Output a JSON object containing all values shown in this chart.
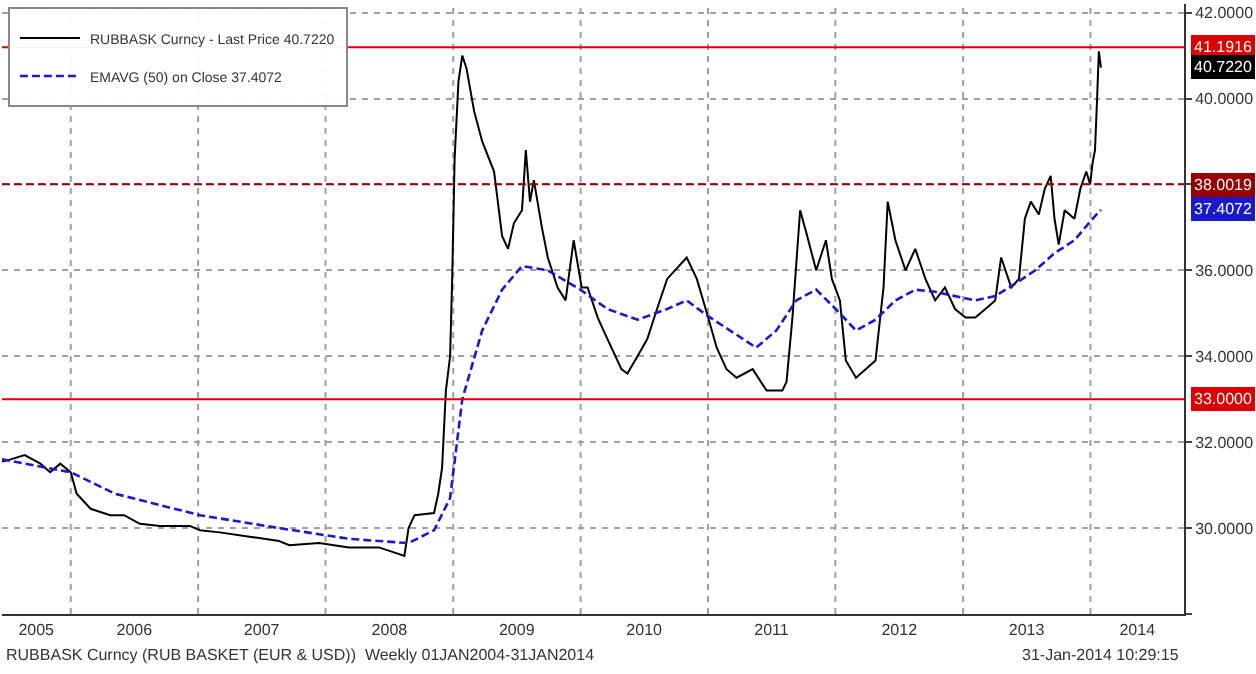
{
  "chart_data": {
    "type": "line",
    "legend": "top left",
    "grid": true,
    "marker": "none",
    "xlim": [
      "2005-06-18",
      "2014-09-26"
    ],
    "xticks": [
      {
        "value": "2005-09-24",
        "label": "2005"
      },
      {
        "value": "2006-01-01",
        "label": null
      },
      {
        "value": "2006-07-02",
        "label": "2006"
      },
      {
        "value": "2007-01-01",
        "label": null
      },
      {
        "value": "2007-07-02",
        "label": "2007"
      },
      {
        "value": "2008-01-01",
        "label": null
      },
      {
        "value": "2008-07-02",
        "label": "2008"
      },
      {
        "value": "2009-01-01",
        "label": null
      },
      {
        "value": "2009-07-02",
        "label": "2009"
      },
      {
        "value": "2010-01-01",
        "label": null
      },
      {
        "value": "2010-07-02",
        "label": "2010"
      },
      {
        "value": "2011-01-01",
        "label": null
      },
      {
        "value": "2011-07-02",
        "label": "2011"
      },
      {
        "value": "2012-01-01",
        "label": null
      },
      {
        "value": "2012-07-02",
        "label": "2012"
      },
      {
        "value": "2013-01-01",
        "label": null
      },
      {
        "value": "2013-07-02",
        "label": "2013"
      },
      {
        "value": "2014-01-01",
        "label": null
      },
      {
        "value": "2014-05-15",
        "label": "2014"
      }
    ],
    "ylim": [
      28,
      42.2
    ],
    "yticks": [
      {
        "value": 28,
        "label": null
      },
      {
        "value": 30,
        "label": "30.0000"
      },
      {
        "value": 32,
        "label": "32.0000"
      },
      {
        "value": 34,
        "label": "34.0000"
      },
      {
        "value": 36,
        "label": "36.0000"
      },
      {
        "value": 38,
        "label": null
      },
      {
        "value": 40,
        "label": "40.0000"
      },
      {
        "value": 42,
        "label": "42.0000"
      }
    ],
    "series": [
      {
        "name": "RUBBASK Curncy - Last Price 40.7220",
        "color": "#000000",
        "line_style": "solid",
        "x": [
          "2005-06-18",
          "2005-07-13",
          "2005-08-22",
          "2005-10-06",
          "2005-11-03",
          "2005-12-02",
          "2006-01-01",
          "2006-01-18",
          "2006-02-27",
          "2006-04-24",
          "2006-06-03",
          "2006-07-18",
          "2006-09-14",
          "2006-12-08",
          "2007-01-06",
          "2007-03-04",
          "2007-05-28",
          "2007-08-21",
          "2007-09-19",
          "2007-12-14",
          "2008-03-08",
          "2008-06-02",
          "2008-07-28",
          "2008-08-14",
          "2008-08-26",
          "2008-09-12",
          "2008-11-07",
          "2008-11-19",
          "2008-11-30",
          "2008-12-11",
          "2008-12-23",
          "2008-12-29",
          "2009-01-05",
          "2009-01-16",
          "2009-01-27",
          "2009-02-08",
          "2009-02-19",
          "2009-03-02",
          "2009-03-25",
          "2009-04-28",
          "2009-05-21",
          "2009-06-07",
          "2009-06-24",
          "2009-07-17",
          "2009-07-28",
          "2009-08-09",
          "2009-08-20",
          "2009-09-12",
          "2009-09-29",
          "2009-10-27",
          "2009-11-19",
          "2009-12-12",
          "2010-01-04",
          "2010-01-21",
          "2010-02-19",
          "2010-03-19",
          "2010-04-28",
          "2010-05-15",
          "2010-06-13",
          "2010-07-11",
          "2010-08-08",
          "2010-09-06",
          "2010-11-01",
          "2010-11-30",
          "2010-12-29",
          "2011-01-26",
          "2011-02-23",
          "2011-03-24",
          "2011-05-09",
          "2011-06-18",
          "2011-08-02",
          "2011-08-14",
          "2011-08-31",
          "2011-09-22",
          "2011-10-09",
          "2011-11-07",
          "2011-12-05",
          "2011-12-22",
          "2012-01-14",
          "2012-01-31",
          "2012-02-29",
          "2012-03-28",
          "2012-04-25",
          "2012-05-18",
          "2012-05-30",
          "2012-06-21",
          "2012-07-20",
          "2012-08-17",
          "2012-09-15",
          "2012-10-13",
          "2012-11-10",
          "2012-12-09",
          "2013-01-08",
          "2013-02-05",
          "2013-03-06",
          "2013-04-03",
          "2013-04-20",
          "2013-05-19",
          "2013-06-10",
          "2013-06-27",
          "2013-07-14",
          "2013-08-06",
          "2013-08-23",
          "2013-09-09",
          "2013-09-20",
          "2013-10-02",
          "2013-10-19",
          "2013-11-16",
          "2013-12-03",
          "2013-12-20",
          "2013-12-31",
          "2014-01-07",
          "2014-01-14",
          "2014-01-20",
          "2014-01-25",
          "2014-01-31"
        ],
        "values": [
          31.55,
          31.6,
          31.7,
          31.5,
          31.3,
          31.5,
          31.3,
          30.8,
          30.45,
          30.3,
          30.3,
          30.1,
          30.05,
          30.05,
          29.95,
          29.9,
          29.8,
          29.7,
          29.6,
          29.65,
          29.55,
          29.55,
          29.4,
          29.35,
          30.0,
          30.3,
          30.35,
          30.8,
          31.4,
          33.2,
          34.0,
          35.8,
          38.6,
          40.4,
          41.0,
          40.7,
          40.2,
          39.7,
          39.0,
          38.3,
          36.8,
          36.5,
          37.1,
          37.4,
          38.8,
          37.6,
          38.1,
          37.0,
          36.3,
          35.6,
          35.3,
          36.7,
          35.6,
          35.6,
          34.9,
          34.4,
          33.7,
          33.6,
          34.0,
          34.4,
          35.1,
          35.8,
          36.3,
          35.8,
          35.0,
          34.2,
          33.7,
          33.5,
          33.7,
          33.2,
          33.2,
          33.4,
          34.9,
          37.4,
          36.9,
          36.0,
          36.7,
          35.8,
          35.3,
          33.9,
          33.5,
          33.7,
          33.9,
          35.6,
          37.6,
          36.7,
          36.0,
          36.5,
          35.8,
          35.3,
          35.6,
          35.1,
          34.9,
          34.9,
          35.1,
          35.3,
          36.3,
          35.6,
          35.8,
          37.2,
          37.6,
          37.3,
          37.9,
          38.2,
          37.2,
          36.6,
          37.4,
          37.2,
          37.9,
          38.3,
          38.0,
          38.5,
          38.8,
          40.0,
          41.1,
          40.72
        ]
      },
      {
        "name": "EMAVG (50) on Close 37.4072",
        "color": "#1a1acc",
        "line_style": "dashed",
        "x": [
          "2005-06-18",
          "2006-01-01",
          "2006-05-08",
          "2007-01-06",
          "2007-08-21",
          "2008-03-08",
          "2008-08-26",
          "2008-11-07",
          "2008-12-23",
          "2009-01-27",
          "2009-03-25",
          "2009-05-21",
          "2009-07-17",
          "2009-09-29",
          "2009-12-31",
          "2010-03-19",
          "2010-06-13",
          "2010-09-06",
          "2010-11-01",
          "2010-12-29",
          "2011-03-24",
          "2011-05-19",
          "2011-07-16",
          "2011-09-11",
          "2011-11-07",
          "2012-01-02",
          "2012-02-29",
          "2012-04-25",
          "2012-06-21",
          "2012-08-17",
          "2012-10-13",
          "2012-12-09",
          "2013-02-05",
          "2013-04-03",
          "2013-06-01",
          "2013-07-27",
          "2013-09-20",
          "2013-11-16",
          "2014-01-07",
          "2014-01-31"
        ],
        "values": [
          31.6,
          31.3,
          30.8,
          30.3,
          30.0,
          29.75,
          29.65,
          29.95,
          30.7,
          33.0,
          34.6,
          35.55,
          36.1,
          36.0,
          35.55,
          35.1,
          34.85,
          35.1,
          35.3,
          34.95,
          34.5,
          34.2,
          34.6,
          35.3,
          35.55,
          35.1,
          34.6,
          34.85,
          35.3,
          35.55,
          35.5,
          35.4,
          35.3,
          35.4,
          35.7,
          36.0,
          36.4,
          36.7,
          37.2,
          37.41
        ]
      }
    ],
    "ref_lines": [
      {
        "axis": "y",
        "value": 41.1916,
        "label": "41.1916",
        "color": "#dd0000",
        "line_style": "solid"
      },
      {
        "axis": "y",
        "value": 38.0019,
        "label": "38.0019",
        "color": "#990000",
        "line_style": "dashed"
      },
      {
        "axis": "y",
        "value": 33.0,
        "label": "33.0000",
        "color": "#dd0000",
        "line_style": "solid"
      }
    ],
    "annotations": [
      {
        "text": "40.7220",
        "y": 40.72
      },
      {
        "text": "37.4072",
        "y": 37.41
      },
      "RUBBASK Curncy (RUB BASKET (EUR & USD))  Weekly 01JAN2004-31JAN2014",
      "31-Jan-2014 10:29:15"
    ]
  }
}
